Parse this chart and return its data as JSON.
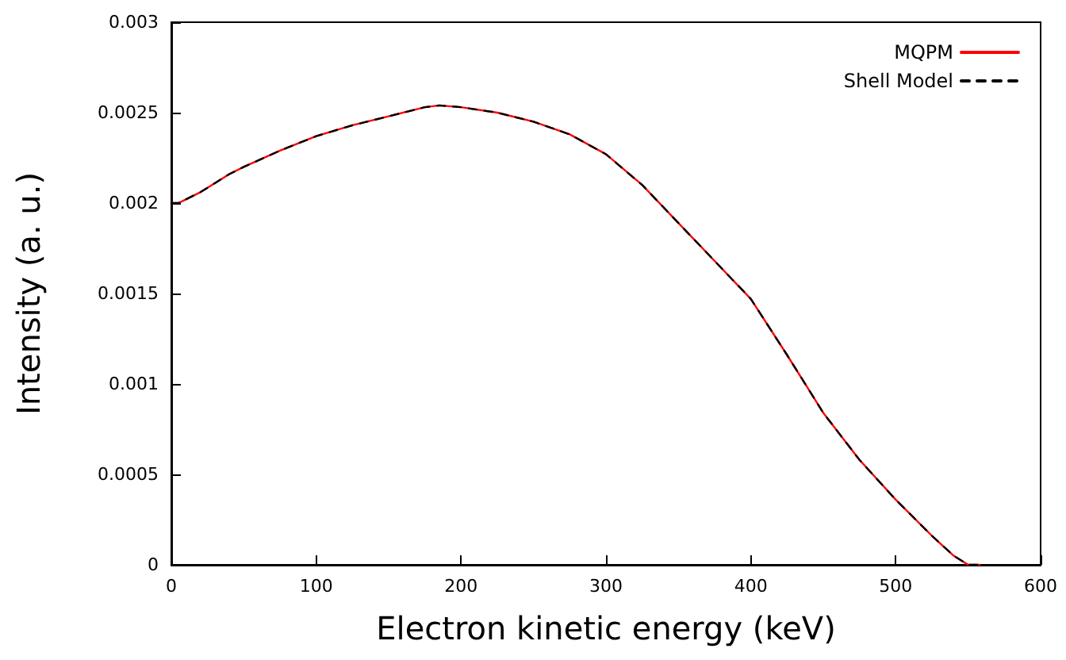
{
  "chart_data": {
    "type": "line",
    "xlabel": "Electron kinetic energy (keV)",
    "ylabel": "Intensity (a. u.)",
    "x": [
      0,
      5,
      10,
      20,
      30,
      40,
      50,
      75,
      100,
      125,
      150,
      175,
      185,
      200,
      225,
      250,
      275,
      300,
      325,
      350,
      375,
      400,
      425,
      450,
      475,
      500,
      525,
      540,
      550,
      558
    ],
    "series": [
      {
        "name": "MQPM",
        "color": "#ff0000",
        "line_style": "solid",
        "values": [
          0.002,
          0.002,
          0.00202,
          0.00206,
          0.00211,
          0.00216,
          0.0022,
          0.00229,
          0.00237,
          0.00243,
          0.00248,
          0.00253,
          0.00254,
          0.00253,
          0.0025,
          0.00245,
          0.00238,
          0.00227,
          0.0021,
          0.00189,
          0.00168,
          0.00147,
          0.00116,
          0.00084,
          0.00058,
          0.00036,
          0.00016,
          5e-05,
          0,
          0
        ]
      },
      {
        "name": "Shell Model",
        "color": "#000000",
        "line_style": "dashed",
        "values": [
          0.002,
          0.002,
          0.00202,
          0.00206,
          0.00211,
          0.00216,
          0.0022,
          0.00229,
          0.00237,
          0.00243,
          0.00248,
          0.00253,
          0.00254,
          0.00253,
          0.0025,
          0.00245,
          0.00238,
          0.00227,
          0.0021,
          0.00189,
          0.00168,
          0.00147,
          0.00116,
          0.00084,
          0.00058,
          0.00036,
          0.00016,
          5e-05,
          0,
          0
        ]
      }
    ],
    "xlim": [
      0,
      600
    ],
    "xticks": [
      0,
      100,
      200,
      300,
      400,
      500,
      600
    ],
    "ylim": [
      0,
      0.003
    ],
    "yticks": [
      0,
      0.0005,
      0.001,
      0.0015,
      0.002,
      0.0025,
      0.003
    ],
    "grid": false,
    "legend": "top right",
    "marker": "none"
  }
}
